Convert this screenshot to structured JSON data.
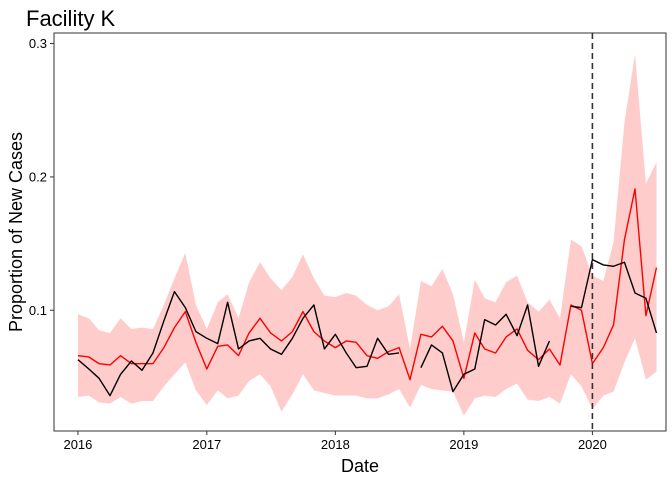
{
  "chart_data": {
    "type": "line",
    "title": "Facility K",
    "xlabel": "Date",
    "ylabel": "Proportion of New Cases",
    "x_range": [
      "2015-10-25",
      "2020-07-28"
    ],
    "y_range": [
      0.0095,
      0.3079
    ],
    "x_ticks": [
      {
        "date": "2016-01-01",
        "label": "2016"
      },
      {
        "date": "2017-01-01",
        "label": "2017"
      },
      {
        "date": "2018-01-01",
        "label": "2018"
      },
      {
        "date": "2019-01-01",
        "label": "2019"
      },
      {
        "date": "2020-01-01",
        "label": "2020"
      }
    ],
    "y_ticks": [
      {
        "value": 0.1,
        "label": "0.1"
      },
      {
        "value": 0.2,
        "label": "0.2"
      },
      {
        "value": 0.3,
        "label": "0.3"
      }
    ],
    "grid": false,
    "vline": {
      "date": "2020-01-01",
      "style": "dashed",
      "color": "#333333"
    },
    "colors": {
      "observed": "#000000",
      "predicted": "#ff0000",
      "interval": "#ffcccc"
    },
    "x": [
      "2016-01-01",
      "2016-02-01",
      "2016-03-01",
      "2016-04-01",
      "2016-05-01",
      "2016-06-01",
      "2016-07-01",
      "2016-08-01",
      "2016-09-01",
      "2016-10-01",
      "2016-11-01",
      "2016-12-01",
      "2017-01-01",
      "2017-02-01",
      "2017-03-01",
      "2017-04-01",
      "2017-05-01",
      "2017-06-01",
      "2017-07-01",
      "2017-08-01",
      "2017-09-01",
      "2017-10-01",
      "2017-11-01",
      "2017-12-01",
      "2018-01-01",
      "2018-02-01",
      "2018-03-01",
      "2018-04-01",
      "2018-05-01",
      "2018-06-01",
      "2018-07-01",
      "2018-08-01",
      "2018-09-01",
      "2018-10-01",
      "2018-11-01",
      "2018-12-01",
      "2019-01-01",
      "2019-02-01",
      "2019-03-01",
      "2019-04-01",
      "2019-05-01",
      "2019-06-01",
      "2019-07-01",
      "2019-08-01",
      "2019-09-01",
      "2019-10-01",
      "2019-11-01",
      "2019-12-01",
      "2020-01-01",
      "2020-02-01",
      "2020-03-01",
      "2020-04-01",
      "2020-05-01",
      "2020-06-01",
      "2020-07-01"
    ],
    "series": [
      {
        "key": "observed",
        "values": [
          0.063,
          0.056,
          0.049,
          0.036,
          0.052,
          0.062,
          0.055,
          0.068,
          0.092,
          0.114,
          0.102,
          0.084,
          0.079,
          0.075,
          0.106,
          0.071,
          0.077,
          0.079,
          0.071,
          0.067,
          0.079,
          0.094,
          0.104,
          0.071,
          0.082,
          0.068,
          0.057,
          0.058,
          0.079,
          0.067,
          0.068,
          null,
          0.057,
          0.074,
          0.068,
          0.039,
          0.052,
          0.056,
          0.093,
          0.089,
          0.097,
          0.081,
          0.104,
          0.058,
          0.077,
          null,
          0.103,
          0.102,
          0.138,
          0.134,
          0.133,
          0.136,
          0.113,
          0.109,
          0.083
        ]
      },
      {
        "key": "predicted",
        "values": [
          0.066,
          0.065,
          0.06,
          0.059,
          0.066,
          0.06,
          0.06,
          0.06,
          0.072,
          0.087,
          0.099,
          0.076,
          0.056,
          0.073,
          0.074,
          0.066,
          0.083,
          0.094,
          0.083,
          0.077,
          0.084,
          0.099,
          0.084,
          0.077,
          0.072,
          0.077,
          0.076,
          0.066,
          0.064,
          0.069,
          0.072,
          0.048,
          0.082,
          0.08,
          0.088,
          0.077,
          0.049,
          0.083,
          0.071,
          0.068,
          0.08,
          0.086,
          0.07,
          0.063,
          0.071,
          0.059,
          0.104,
          0.1,
          0.06,
          0.072,
          0.089,
          0.153,
          0.191,
          0.096,
          0.132
        ]
      },
      {
        "key": "interval",
        "lower": [
          0.035,
          0.036,
          0.031,
          0.03,
          0.035,
          0.03,
          0.032,
          0.032,
          0.043,
          0.052,
          0.061,
          0.04,
          0.029,
          0.04,
          0.034,
          0.036,
          0.047,
          0.052,
          0.043,
          0.024,
          0.037,
          0.052,
          0.04,
          0.038,
          0.036,
          0.036,
          0.036,
          0.034,
          0.034,
          0.037,
          0.041,
          0.027,
          0.044,
          0.041,
          0.04,
          0.039,
          0.021,
          0.034,
          0.036,
          0.035,
          0.041,
          0.045,
          0.033,
          0.032,
          0.035,
          0.03,
          0.052,
          0.043,
          0.026,
          0.036,
          0.039,
          0.061,
          0.079,
          0.048,
          0.054
        ],
        "upper": [
          0.097,
          0.094,
          0.085,
          0.083,
          0.094,
          0.086,
          0.087,
          0.086,
          0.104,
          0.124,
          0.143,
          0.104,
          0.086,
          0.106,
          0.112,
          0.094,
          0.121,
          0.136,
          0.124,
          0.115,
          0.125,
          0.142,
          0.124,
          0.111,
          0.11,
          0.113,
          0.111,
          0.104,
          0.1,
          0.103,
          0.112,
          0.071,
          0.122,
          0.118,
          0.131,
          0.112,
          0.076,
          0.123,
          0.109,
          0.106,
          0.121,
          0.126,
          0.106,
          0.099,
          0.108,
          0.094,
          0.153,
          0.148,
          0.126,
          0.122,
          0.151,
          0.241,
          0.292,
          0.195,
          0.211
        ]
      }
    ]
  }
}
